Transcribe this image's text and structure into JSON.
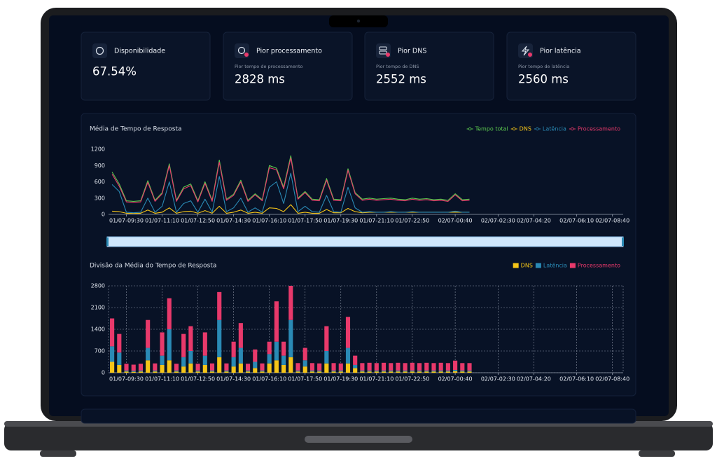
{
  "cards": [
    {
      "title": "Disponibilidade",
      "value": "67.54%"
    },
    {
      "title": "Pior processamento",
      "subtitle": "Pior tempo de processamento",
      "value": "2828 ms"
    },
    {
      "title": "Pior DNS",
      "subtitle": "Pior tempo de DNS",
      "value": "2552 ms"
    },
    {
      "title": "Pior latência",
      "subtitle": "Pior tempo de latência",
      "value": "2560 ms"
    }
  ],
  "chart_data": [
    {
      "type": "line",
      "title": "Média de Tempo de Resposta",
      "categories": [
        null,
        null,
        "01/07-09:30",
        null,
        null,
        null,
        null,
        "01/07-11:10",
        null,
        null,
        null,
        null,
        "01/07-12:50",
        null,
        null,
        null,
        null,
        "01/07-14:30",
        null,
        null,
        null,
        null,
        "01/07-16:10",
        null,
        null,
        null,
        null,
        "01/07-17:50",
        null,
        null,
        null,
        null,
        "01/07-19:30",
        null,
        null,
        null,
        null,
        "01/07-21:10",
        null,
        null,
        null,
        null,
        "01/07-22:50",
        null,
        null,
        null,
        null,
        null,
        "02/07-00:40",
        null,
        null,
        null,
        null,
        null,
        "02/07-02:30",
        null,
        null,
        null,
        null,
        "02/07-04:20",
        null,
        null,
        null,
        null,
        null,
        "02/07-06:10",
        null,
        null,
        null,
        null,
        "02/07-08:40",
        null
      ],
      "series": [
        {
          "name": "Tempo total",
          "color": "#5cc94f",
          "values": [
            780,
            560,
            250,
            240,
            250,
            620,
            260,
            400,
            930,
            260,
            500,
            560,
            250,
            600,
            260,
            1000,
            280,
            370,
            630,
            260,
            380,
            270,
            900,
            850,
            500,
            1080,
            300,
            420,
            280,
            270,
            660,
            280,
            270,
            840,
            400,
            280,
            300,
            280,
            290,
            300,
            280,
            270,
            300,
            280,
            290,
            270,
            280,
            260,
            380,
            270,
            280,
            null,
            null,
            null,
            null,
            null,
            null,
            null,
            null,
            null,
            null,
            null,
            null,
            null,
            null,
            null,
            null,
            null,
            null,
            null,
            null,
            null
          ]
        },
        {
          "name": "DNS",
          "color": "#f5c518",
          "values": [
            60,
            50,
            20,
            20,
            20,
            80,
            20,
            40,
            120,
            20,
            50,
            60,
            20,
            70,
            20,
            150,
            20,
            40,
            80,
            20,
            40,
            20,
            120,
            110,
            50,
            180,
            20,
            40,
            20,
            20,
            90,
            30,
            30,
            110,
            50,
            30,
            40,
            40,
            40,
            40,
            40,
            40,
            40,
            40,
            40,
            40,
            40,
            40,
            40,
            40,
            40,
            null,
            null,
            null,
            null,
            null,
            null,
            null,
            null,
            null,
            null,
            null,
            null,
            null,
            null,
            null,
            null,
            null,
            null,
            null,
            null,
            null
          ]
        },
        {
          "name": "Latência",
          "color": "#2a8ab5",
          "values": [
            550,
            420,
            40,
            30,
            40,
            300,
            40,
            150,
            600,
            40,
            200,
            250,
            40,
            280,
            40,
            700,
            50,
            120,
            300,
            40,
            120,
            40,
            500,
            600,
            200,
            760,
            50,
            150,
            50,
            40,
            350,
            50,
            40,
            500,
            120,
            40,
            50,
            40,
            40,
            50,
            40,
            40,
            50,
            40,
            40,
            40,
            40,
            40,
            60,
            40,
            40,
            null,
            null,
            null,
            null,
            null,
            null,
            null,
            null,
            null,
            null,
            null,
            null,
            null,
            null,
            null,
            null,
            null,
            null,
            null,
            null,
            null
          ]
        },
        {
          "name": "Processamento",
          "color": "#e8396b",
          "values": [
            740,
            520,
            230,
            220,
            230,
            590,
            240,
            380,
            900,
            240,
            470,
            530,
            230,
            570,
            240,
            960,
            260,
            350,
            600,
            240,
            360,
            250,
            860,
            820,
            470,
            1040,
            280,
            400,
            260,
            250,
            630,
            260,
            250,
            810,
            380,
            260,
            280,
            260,
            270,
            280,
            260,
            250,
            280,
            260,
            270,
            250,
            260,
            240,
            360,
            250,
            260,
            null,
            null,
            null,
            null,
            null,
            null,
            null,
            null,
            null,
            null,
            null,
            null,
            null,
            null,
            null,
            null,
            null,
            null,
            null,
            null,
            null
          ]
        }
      ],
      "ylim": [
        0,
        1200
      ],
      "yticks": [
        0,
        300,
        600,
        900,
        1200
      ],
      "grid": false,
      "legend": "top-right"
    },
    {
      "type": "bar",
      "stacked": true,
      "title": "Divisão da Média do Tempo de Resposta",
      "categories": [
        null,
        null,
        "01/07-09:30",
        null,
        null,
        null,
        null,
        "01/07-11:10",
        null,
        null,
        null,
        null,
        "01/07-12:50",
        null,
        null,
        null,
        null,
        "01/07-14:30",
        null,
        null,
        null,
        null,
        "01/07-16:10",
        null,
        null,
        null,
        null,
        "01/07-17:50",
        null,
        null,
        null,
        null,
        "01/07-19:30",
        null,
        null,
        null,
        null,
        "01/07-21:10",
        null,
        null,
        null,
        null,
        "01/07-22:50",
        null,
        null,
        null,
        null,
        null,
        "02/07-00:40",
        null,
        null,
        null,
        null,
        null,
        "02/07-02:30",
        null,
        null,
        null,
        null,
        "02/07-04:20",
        null,
        null,
        null,
        null,
        null,
        "02/07-06:10",
        null,
        null,
        null,
        null,
        "02/07-08:40",
        null
      ],
      "series": [
        {
          "name": "DNS",
          "color": "#f5c518",
          "values": [
            350,
            250,
            40,
            30,
            40,
            400,
            40,
            250,
            400,
            40,
            200,
            300,
            40,
            250,
            40,
            500,
            40,
            200,
            300,
            40,
            150,
            40,
            300,
            400,
            250,
            500,
            40,
            200,
            40,
            40,
            300,
            40,
            40,
            300,
            150,
            40,
            40,
            40,
            40,
            40,
            40,
            40,
            40,
            40,
            40,
            40,
            40,
            40,
            50,
            40,
            40,
            null,
            null,
            null,
            null,
            null,
            null,
            null,
            null,
            null,
            null,
            null,
            null,
            null,
            null,
            null,
            null,
            null,
            null,
            null,
            null,
            null
          ]
        },
        {
          "name": "Latência",
          "color": "#2a8ab5",
          "values": [
            500,
            400,
            30,
            30,
            30,
            400,
            30,
            300,
            1000,
            30,
            300,
            400,
            30,
            300,
            30,
            1200,
            30,
            300,
            500,
            30,
            200,
            30,
            300,
            600,
            300,
            1200,
            30,
            200,
            30,
            30,
            400,
            30,
            30,
            500,
            100,
            30,
            30,
            30,
            30,
            30,
            30,
            30,
            30,
            30,
            30,
            30,
            30,
            30,
            40,
            30,
            30,
            null,
            null,
            null,
            null,
            null,
            null,
            null,
            null,
            null,
            null,
            null,
            null,
            null,
            null,
            null,
            null,
            null,
            null,
            null,
            null,
            null
          ]
        },
        {
          "name": "Processamento",
          "color": "#e8396b",
          "values": [
            900,
            600,
            220,
            200,
            220,
            900,
            230,
            750,
            1000,
            220,
            750,
            800,
            220,
            750,
            230,
            900,
            230,
            500,
            800,
            220,
            400,
            230,
            400,
            1300,
            450,
            1100,
            240,
            400,
            240,
            230,
            800,
            240,
            230,
            1000,
            300,
            240,
            250,
            240,
            250,
            240,
            250,
            240,
            250,
            240,
            250,
            240,
            250,
            240,
            300,
            240,
            240,
            null,
            null,
            null,
            null,
            null,
            null,
            null,
            null,
            null,
            null,
            null,
            null,
            null,
            null,
            null,
            null,
            null,
            null,
            null,
            null,
            null
          ]
        }
      ],
      "ylim": [
        0,
        2800
      ],
      "yticks": [
        0,
        700,
        1400,
        2100,
        2800
      ],
      "grid": true,
      "legend": "top-right"
    }
  ]
}
